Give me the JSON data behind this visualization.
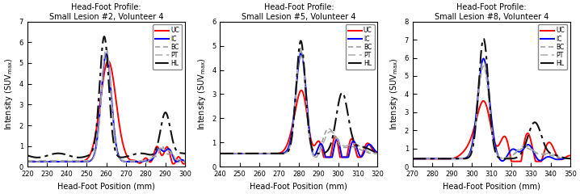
{
  "plots": [
    {
      "title": "Head-Foot Profile:\nSmall Lesion #2, Volunteer 4",
      "xlim": [
        220,
        300
      ],
      "ylim": [
        0,
        7
      ],
      "xticks": [
        220,
        230,
        240,
        250,
        260,
        270,
        280,
        290,
        300
      ],
      "yticks": [
        0,
        1,
        2,
        3,
        4,
        5,
        6,
        7
      ]
    },
    {
      "title": "Head-Foot Profile:\nSmall Lesion #5, Volunteer 4",
      "xlim": [
        240,
        320
      ],
      "ylim": [
        0,
        6
      ],
      "xticks": [
        240,
        250,
        260,
        270,
        280,
        290,
        300,
        310,
        320
      ],
      "yticks": [
        0,
        1,
        2,
        3,
        4,
        5,
        6
      ]
    },
    {
      "title": "Head-Foot Profile:\nSmall Lesion #8, Volunteer 4",
      "xlim": [
        270,
        350
      ],
      "ylim": [
        0,
        8
      ],
      "xticks": [
        270,
        280,
        290,
        300,
        310,
        320,
        330,
        340,
        350
      ],
      "yticks": [
        0,
        1,
        2,
        3,
        4,
        5,
        6,
        7,
        8
      ]
    }
  ],
  "xlabel": "Head-Foot Position (mm)",
  "legend_labels": [
    "UC",
    "IC",
    "BC",
    "PT",
    "HL"
  ],
  "line_colors_uc": "#ff0000",
  "line_colors_ic": "#0000ff",
  "line_colors_bc": "#999999",
  "line_colors_pt": "#aaaaaa",
  "line_colors_hl": "#111111"
}
